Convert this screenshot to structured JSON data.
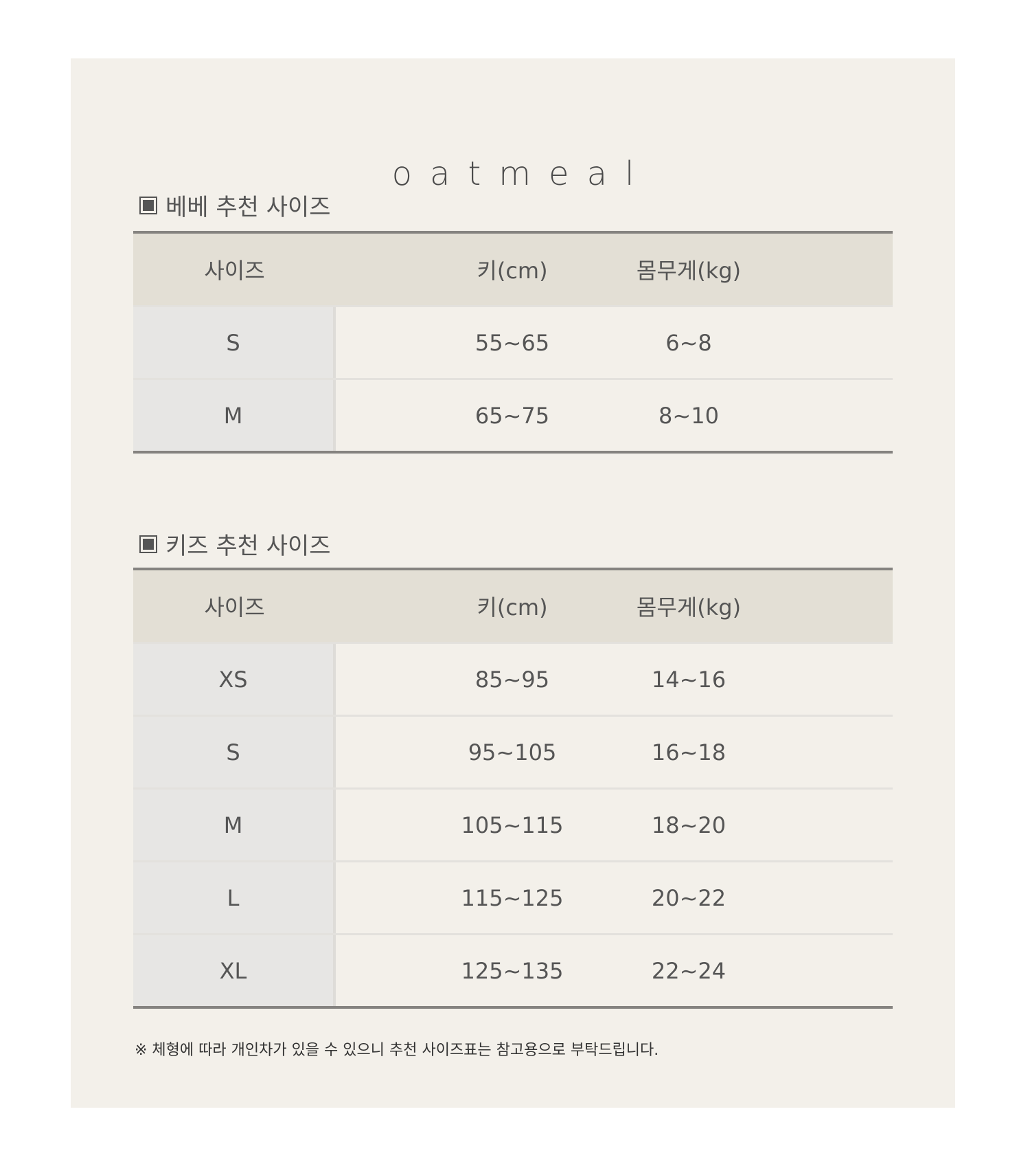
{
  "brand": "oatmeal",
  "sections": [
    {
      "title": "베베 추천 사이즈",
      "headers": [
        "사이즈",
        "키(cm)",
        "몸무게(kg)"
      ],
      "rows": [
        [
          "S",
          "55~65",
          "6~8"
        ],
        [
          "M",
          "65~75",
          "8~10"
        ]
      ]
    },
    {
      "title": "키즈 추천 사이즈",
      "headers": [
        "사이즈",
        "키(cm)",
        "몸무게(kg)"
      ],
      "rows": [
        [
          "XS",
          "85~95",
          "14~16"
        ],
        [
          "S",
          "95~105",
          "16~18"
        ],
        [
          "M",
          "105~115",
          "18~20"
        ],
        [
          "L",
          "115~125",
          "20~22"
        ],
        [
          "XL",
          "125~135",
          "22~24"
        ]
      ]
    }
  ],
  "footnote": "※ 체형에 따라 개인차가 있을 수 있으니 추천 사이즈표는 참고용으로 부탁드립니다."
}
